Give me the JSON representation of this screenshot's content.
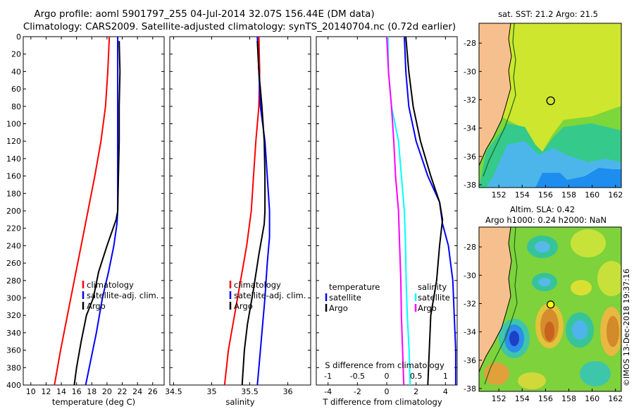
{
  "title": {
    "line1": "Argo profile: aoml 5901797_255 04-Jul-2014 32.07S 156.44E (DM data)",
    "line2": "Climatology: CARS2009. Satellite-adjusted climatology: synTS_20140704.nc (0.72d earlier)"
  },
  "colors": {
    "climatology": "#ff0000",
    "satellite": "#0000ff",
    "argo": "#000000",
    "s_diff": "#00ffff",
    "t_diff": "#ff00ff",
    "land": "#f6c08e"
  },
  "side_label": "©IMOS 13-Dec-2018 19:37:16",
  "chart_data": [
    {
      "type": "line",
      "name": "temperature",
      "xlabel": "temperature (deg C)",
      "ylabel": "",
      "xlim": [
        9,
        27.5
      ],
      "ylim": [
        400,
        0
      ],
      "xticks": [
        "10",
        "12",
        "14",
        "16",
        "18",
        "20",
        "22",
        "24",
        "26"
      ],
      "yticks": [
        "0",
        "20",
        "40",
        "60",
        "80",
        "100",
        "120",
        "140",
        "160",
        "180",
        "200",
        "220",
        "240",
        "260",
        "280",
        "300",
        "320",
        "340",
        "360",
        "380",
        "400"
      ],
      "legend": [
        "climatology",
        "satellite-adj. clim.",
        "Argo"
      ],
      "series": [
        {
          "name": "climatology",
          "points": [
            [
              20.3,
              0
            ],
            [
              20.1,
              40
            ],
            [
              19.8,
              80
            ],
            [
              19.2,
              120
            ],
            [
              18.4,
              160
            ],
            [
              17.5,
              200
            ],
            [
              16.6,
              240
            ],
            [
              15.7,
              280
            ],
            [
              14.8,
              320
            ],
            [
              13.9,
              360
            ],
            [
              13.1,
              400
            ]
          ]
        },
        {
          "name": "satellite-adj. clim.",
          "points": [
            [
              21.4,
              0
            ],
            [
              21.4,
              50
            ],
            [
              21.4,
              100
            ],
            [
              21.4,
              150
            ],
            [
              21.4,
              200
            ],
            [
              21.3,
              215
            ],
            [
              20.9,
              240
            ],
            [
              20.2,
              270
            ],
            [
              19.4,
              300
            ],
            [
              18.6,
              340
            ],
            [
              17.9,
              370
            ],
            [
              17.2,
              400
            ]
          ]
        },
        {
          "name": "Argo",
          "points": [
            [
              21.6,
              5
            ],
            [
              21.7,
              40
            ],
            [
              21.6,
              80
            ],
            [
              21.6,
              120
            ],
            [
              21.5,
              160
            ],
            [
              21.4,
              200
            ],
            [
              21.2,
              210
            ],
            [
              20.0,
              240
            ],
            [
              18.9,
              270
            ],
            [
              18.2,
              300
            ],
            [
              17.3,
              320
            ],
            [
              16.6,
              350
            ],
            [
              16.0,
              380
            ],
            [
              15.7,
              400
            ]
          ]
        }
      ]
    },
    {
      "type": "line",
      "name": "salinity",
      "xlabel": "salinity",
      "xlim": [
        34.45,
        36.3
      ],
      "ylim": [
        400,
        0
      ],
      "xticks": [
        "34.5",
        "35",
        "35.5",
        "36"
      ],
      "legend": [
        "climatology",
        "satellite-adj. clim.",
        "Argo"
      ],
      "series": [
        {
          "name": "climatology",
          "points": [
            [
              35.62,
              0
            ],
            [
              35.63,
              40
            ],
            [
              35.62,
              80
            ],
            [
              35.58,
              120
            ],
            [
              35.55,
              160
            ],
            [
              35.52,
              200
            ],
            [
              35.46,
              240
            ],
            [
              35.38,
              280
            ],
            [
              35.3,
              320
            ],
            [
              35.22,
              360
            ],
            [
              35.17,
              400
            ]
          ]
        },
        {
          "name": "satellite-adj. clim.",
          "points": [
            [
              35.6,
              0
            ],
            [
              35.62,
              40
            ],
            [
              35.64,
              80
            ],
            [
              35.7,
              120
            ],
            [
              35.73,
              160
            ],
            [
              35.76,
              200
            ],
            [
              35.76,
              230
            ],
            [
              35.73,
              260
            ],
            [
              35.7,
              300
            ],
            [
              35.66,
              340
            ],
            [
              35.63,
              370
            ],
            [
              35.6,
              400
            ]
          ]
        },
        {
          "name": "Argo",
          "points": [
            [
              35.6,
              5
            ],
            [
              35.62,
              40
            ],
            [
              35.66,
              80
            ],
            [
              35.69,
              120
            ],
            [
              35.7,
              160
            ],
            [
              35.7,
              200
            ],
            [
              35.69,
              215
            ],
            [
              35.62,
              250
            ],
            [
              35.55,
              290
            ],
            [
              35.47,
              330
            ],
            [
              35.43,
              360
            ],
            [
              35.4,
              400
            ]
          ]
        }
      ]
    },
    {
      "type": "line",
      "name": "difference",
      "xlabel": "T difference from climatology",
      "top_xlabel": "S difference from climatology",
      "xlim": [
        -4.8,
        4.8
      ],
      "ylim": [
        400,
        0
      ],
      "xticks": [
        "-4",
        "-2",
        "0",
        "2",
        "4"
      ],
      "top_xticks": [
        "-1",
        "-0.5",
        "0",
        "0.5",
        "1"
      ],
      "legend_left": [
        "temperature",
        "satellite",
        "Argo"
      ],
      "legend_right": [
        "salinity",
        "satellite",
        "Argo"
      ],
      "series": [
        {
          "name": "temperature satellite",
          "points": [
            [
              1.2,
              0
            ],
            [
              1.3,
              40
            ],
            [
              1.5,
              80
            ],
            [
              2.0,
              120
            ],
            [
              2.8,
              160
            ],
            [
              3.6,
              190
            ],
            [
              3.8,
              215
            ],
            [
              4.2,
              240
            ],
            [
              4.5,
              280
            ],
            [
              4.6,
              320
            ],
            [
              4.7,
              360
            ],
            [
              4.7,
              400
            ]
          ]
        },
        {
          "name": "temperature Argo",
          "points": [
            [
              1.3,
              0
            ],
            [
              1.5,
              40
            ],
            [
              1.8,
              80
            ],
            [
              2.3,
              120
            ],
            [
              3.0,
              160
            ],
            [
              3.6,
              190
            ],
            [
              3.8,
              210
            ],
            [
              3.6,
              240
            ],
            [
              3.4,
              280
            ],
            [
              3.0,
              320
            ],
            [
              2.9,
              360
            ],
            [
              2.8,
              400
            ]
          ]
        },
        {
          "name": "salinity satellite",
          "points": [
            [
              0.02,
              0
            ],
            [
              0.03,
              40
            ],
            [
              0.08,
              80
            ],
            [
              0.2,
              120
            ],
            [
              0.25,
              160
            ],
            [
              0.3,
              200
            ],
            [
              0.32,
              240
            ],
            [
              0.33,
              280
            ],
            [
              0.35,
              320
            ],
            [
              0.38,
              360
            ],
            [
              0.4,
              400
            ]
          ]
        },
        {
          "name": "salinity Argo",
          "points": [
            [
              0.0,
              0
            ],
            [
              0.03,
              40
            ],
            [
              0.08,
              80
            ],
            [
              0.12,
              120
            ],
            [
              0.15,
              160
            ],
            [
              0.2,
              200
            ],
            [
              0.22,
              240
            ],
            [
              0.24,
              280
            ],
            [
              0.25,
              320
            ],
            [
              0.27,
              360
            ],
            [
              0.29,
              400
            ]
          ]
        }
      ]
    },
    {
      "type": "heatmap",
      "name": "sst-map",
      "title": "sat. SST: 21.2 Argo: 21.5",
      "xticks": [
        "152",
        "154",
        "156",
        "158",
        "160",
        "162"
      ],
      "yticks": [
        "-28",
        "-30",
        "-32",
        "-34",
        "-36",
        "-38"
      ],
      "marker": {
        "lon": 156.44,
        "lat": -32.07
      }
    },
    {
      "type": "heatmap",
      "name": "sla-map",
      "title_line1": "Altim. SLA: 0.42",
      "title_line2": "Argo h1000: 0.24 h2000: NaN",
      "xticks": [
        "152",
        "154",
        "156",
        "158",
        "160",
        "162"
      ],
      "yticks": [
        "-28",
        "-30",
        "-32",
        "-34",
        "-36",
        "-38"
      ],
      "marker": {
        "lon": 156.44,
        "lat": -32.07
      }
    }
  ]
}
